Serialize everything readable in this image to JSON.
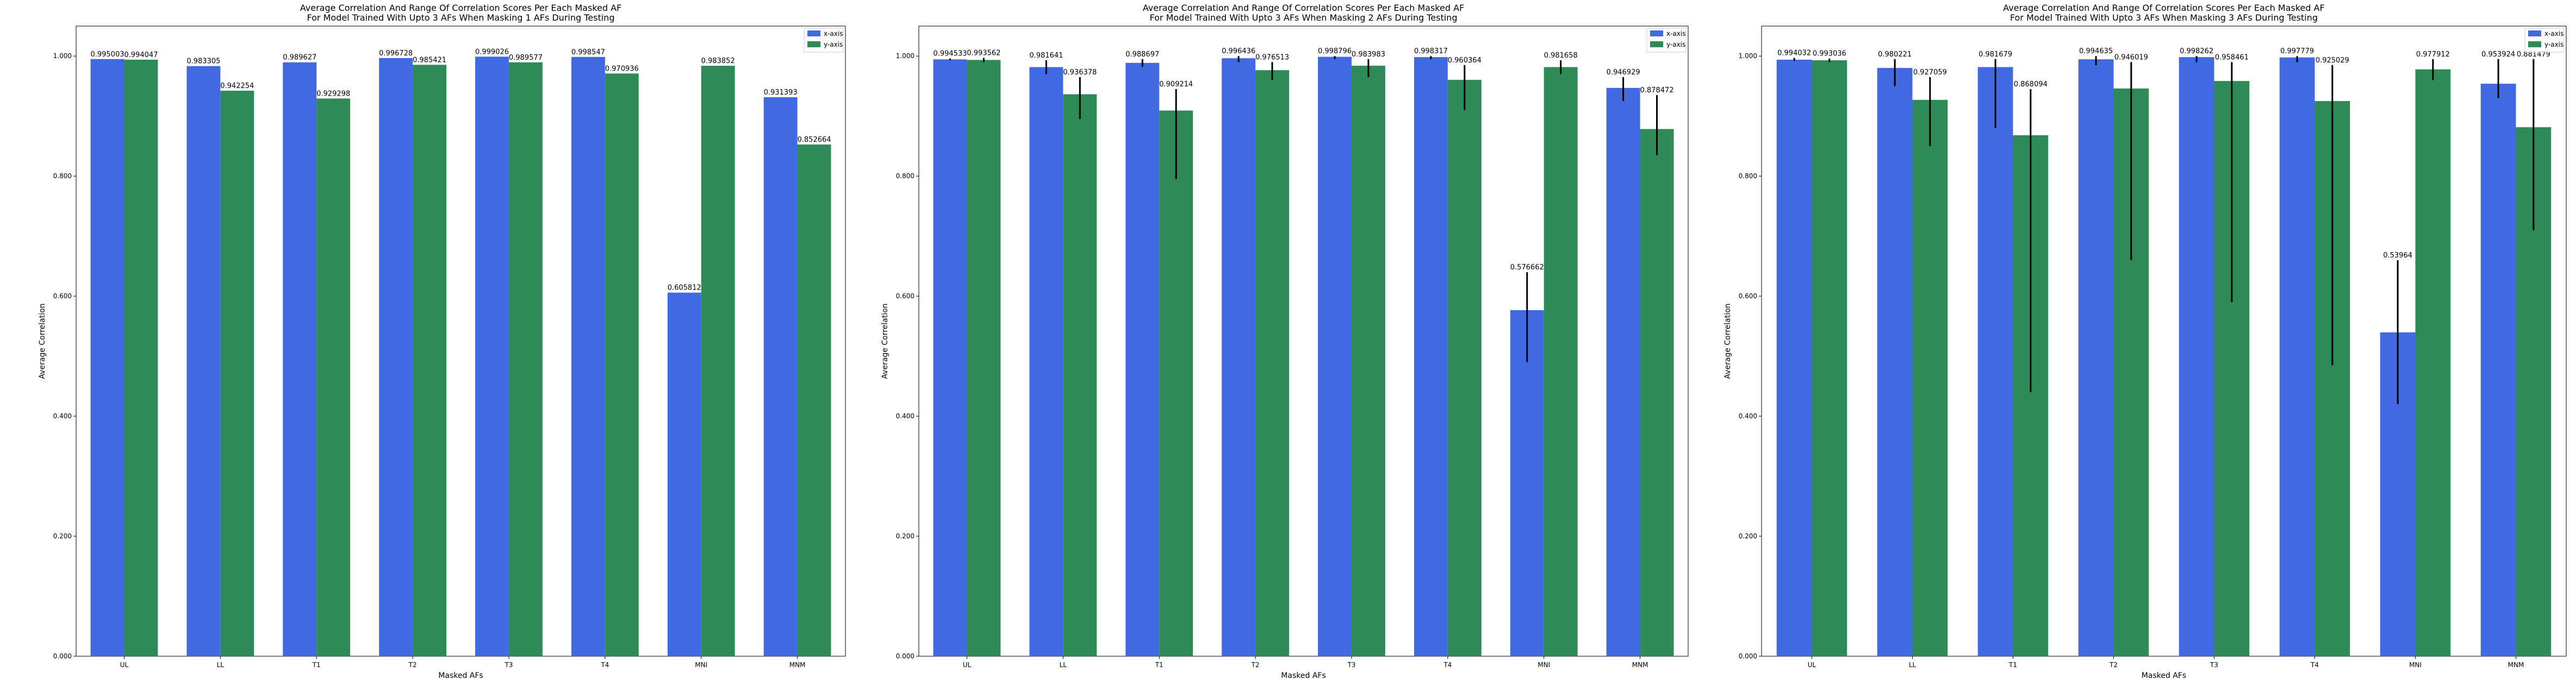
{
  "colors": {
    "x_axis": "#4169e1",
    "y_axis": "#2e8b57",
    "error_bar": "#000000"
  },
  "chart_data": [
    {
      "type": "bar",
      "title": [
        "Average Correlation And Range Of Correlation Scores Per Each Masked AF",
        "For Model Trained With Upto 3 AFs When Masking 1 AFs During Testing"
      ],
      "xlabel": "Masked AFs",
      "ylabel": "Average Correlation",
      "ylim": [
        0,
        1.05
      ],
      "yticks": [
        "0.000",
        "0.200",
        "0.400",
        "0.600",
        "0.800",
        "1.000"
      ],
      "grid": false,
      "legend_position": "top-right",
      "categories": [
        "UL",
        "LL",
        "T1",
        "T2",
        "T3",
        "T4",
        "MNI",
        "MNM"
      ],
      "series": [
        {
          "name": "x-axis",
          "values": [
            0.995003,
            0.983305,
            0.989627,
            0.996728,
            0.999026,
            0.998547,
            0.605812,
            0.931393
          ],
          "labels": [
            "0.995003",
            "0.983305",
            "0.989627",
            "0.996728",
            "0.999026",
            "0.998547",
            "0.605812",
            "0.931393"
          ],
          "err": null
        },
        {
          "name": "y-axis",
          "values": [
            0.994047,
            0.942254,
            0.929298,
            0.985421,
            0.989577,
            0.970936,
            0.983852,
            0.852664
          ],
          "labels": [
            "0.994047",
            "0.942254",
            "0.929298",
            "0.985421",
            "0.989577",
            "0.970936",
            "0.983852",
            "0.852664"
          ],
          "err": null
        }
      ]
    },
    {
      "type": "bar",
      "title": [
        "Average Correlation And Range Of Correlation Scores Per Each Masked AF",
        "For Model Trained With Upto 3 AFs When Masking 2 AFs During Testing"
      ],
      "xlabel": "Masked AFs",
      "ylabel": "Average Correlation",
      "ylim": [
        0,
        1.05
      ],
      "yticks": [
        "0.000",
        "0.200",
        "0.400",
        "0.600",
        "0.800",
        "1.000"
      ],
      "grid": false,
      "legend_position": "top-right",
      "categories": [
        "UL",
        "LL",
        "T1",
        "T2",
        "T3",
        "T4",
        "MNI",
        "MNM"
      ],
      "series": [
        {
          "name": "x-axis",
          "values": [
            0.994533,
            0.981641,
            0.988697,
            0.996436,
            0.998796,
            0.998317,
            0.576662,
            0.946929
          ],
          "labels": [
            "0.994533",
            "0.981641",
            "0.988697",
            "0.996436",
            "0.998796",
            "0.998317",
            "0.576662",
            "0.946929"
          ],
          "err": [
            [
              0.993,
              0.996
            ],
            [
              0.97,
              0.993
            ],
            [
              0.982,
              0.995
            ],
            [
              0.99,
              1.0
            ],
            [
              0.995,
              1.0
            ],
            [
              0.995,
              1.0
            ],
            [
              0.49,
              0.64
            ],
            [
              0.925,
              0.965
            ]
          ]
        },
        {
          "name": "y-axis",
          "values": [
            0.993562,
            0.936378,
            0.909214,
            0.976513,
            0.983983,
            0.960364,
            0.981658,
            0.878472
          ],
          "labels": [
            "0.993562",
            "0.936378",
            "0.909214",
            "0.976513",
            "0.983983",
            "0.960364",
            "0.981658",
            "0.878472"
          ],
          "err": [
            [
              0.99,
              0.997
            ],
            [
              0.895,
              0.965
            ],
            [
              0.795,
              0.945
            ],
            [
              0.96,
              0.99
            ],
            [
              0.965,
              0.995
            ],
            [
              0.91,
              0.985
            ],
            [
              0.97,
              0.993
            ],
            [
              0.835,
              0.935
            ]
          ]
        }
      ]
    },
    {
      "type": "bar",
      "title": [
        "Average Correlation And Range Of Correlation Scores Per Each Masked AF",
        "For Model Trained With Upto 3 AFs When Masking 3 AFs During Testing"
      ],
      "xlabel": "Masked AFs",
      "ylabel": "Average Correlation",
      "ylim": [
        0,
        1.05
      ],
      "yticks": [
        "0.000",
        "0.200",
        "0.400",
        "0.600",
        "0.800",
        "1.000"
      ],
      "grid": false,
      "legend_position": "top-right",
      "categories": [
        "UL",
        "LL",
        "T1",
        "T2",
        "T3",
        "T4",
        "MNI",
        "MNM"
      ],
      "series": [
        {
          "name": "x-axis",
          "values": [
            0.994032,
            0.980221,
            0.981679,
            0.994635,
            0.998262,
            0.997779,
            0.53964,
            0.953924
          ],
          "labels": [
            "0.994032",
            "0.980221",
            "0.981679",
            "0.994635",
            "0.998262",
            "0.997779",
            "0.53964",
            "0.953924"
          ],
          "err": [
            [
              0.992,
              0.997
            ],
            [
              0.95,
              0.995
            ],
            [
              0.88,
              0.995
            ],
            [
              0.985,
              1.0
            ],
            [
              0.99,
              1.0
            ],
            [
              0.99,
              1.0
            ],
            [
              0.42,
              0.66
            ],
            [
              0.93,
              0.995
            ]
          ]
        },
        {
          "name": "y-axis",
          "values": [
            0.993036,
            0.927059,
            0.868094,
            0.946019,
            0.958461,
            0.925029,
            0.977912,
            0.881479
          ],
          "labels": [
            "0.993036",
            "0.927059",
            "0.868094",
            "0.946019",
            "0.958461",
            "0.925029",
            "0.977912",
            "0.881479"
          ],
          "err": [
            [
              0.99,
              0.996
            ],
            [
              0.85,
              0.965
            ],
            [
              0.44,
              0.945
            ],
            [
              0.66,
              0.99
            ],
            [
              0.59,
              0.99
            ],
            [
              0.485,
              0.985
            ],
            [
              0.96,
              0.995
            ],
            [
              0.71,
              0.995
            ]
          ]
        }
      ]
    }
  ]
}
